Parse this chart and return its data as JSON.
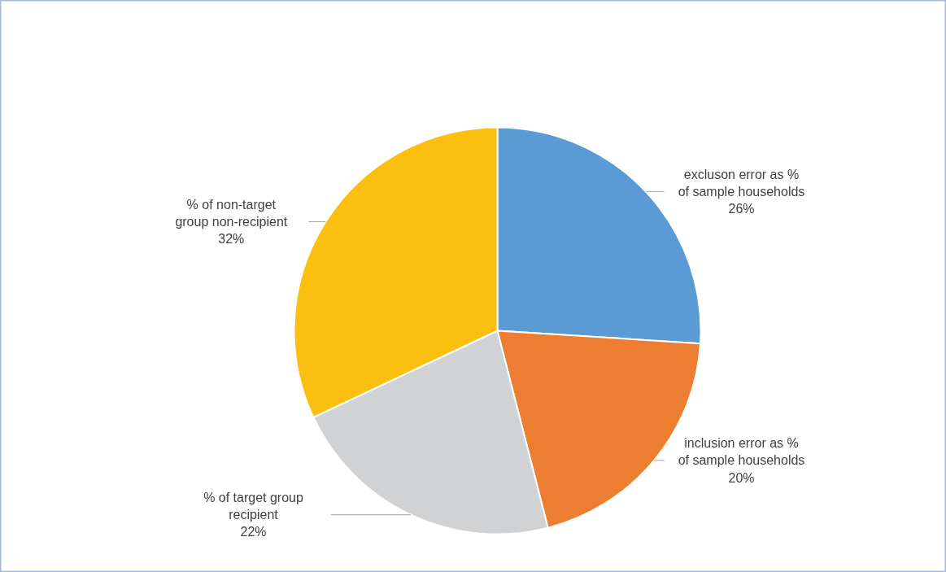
{
  "chart_data": {
    "type": "pie",
    "categories": [
      "excluson error as % of sample households",
      "inclusion error as % of sample households",
      "% of target group recipient",
      "% of non-target group non-recipient"
    ],
    "values": [
      26,
      20,
      22,
      32
    ],
    "colors": [
      "#5b9bd5",
      "#ed7d31",
      "#d0d2d4",
      "#fbbf10"
    ],
    "value_labels": [
      "26%",
      "20%",
      "22%",
      "32%"
    ]
  }
}
